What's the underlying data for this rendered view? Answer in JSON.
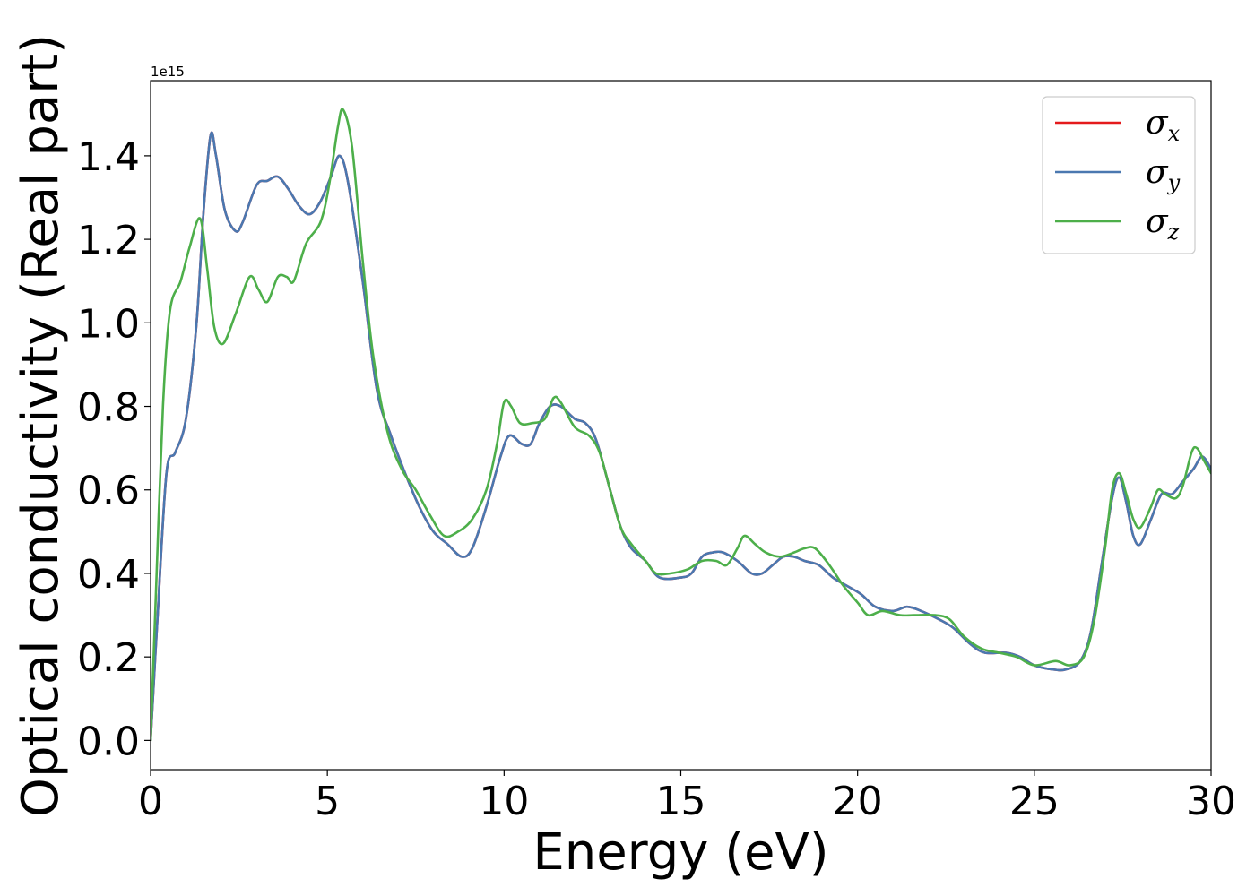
{
  "chart_data": {
    "type": "line",
    "xlabel": "Energy (eV)",
    "ylabel": "Optical conductivity (Real part)",
    "y_offset_label": "1e15",
    "xlim": [
      0,
      30
    ],
    "ylim": [
      -0.07,
      1.58
    ],
    "x_ticks": [
      0,
      5,
      10,
      15,
      20,
      25,
      30
    ],
    "y_ticks": [
      0.0,
      0.2,
      0.4,
      0.6,
      0.8,
      1.0,
      1.2,
      1.4
    ],
    "x_tick_labels": [
      "0",
      "5",
      "10",
      "15",
      "20",
      "25",
      "30"
    ],
    "y_tick_labels": [
      "0.0",
      "0.2",
      "0.4",
      "0.6",
      "0.8",
      "1.0",
      "1.2",
      "1.4"
    ],
    "legend_position": "top-right",
    "grid": false,
    "series": [
      {
        "name": "σx",
        "legend_symbol": "σ",
        "legend_subscript": "x",
        "color": "#e41a1c",
        "points": [
          [
            0,
            0
          ],
          [
            0.2,
            0.3
          ],
          [
            0.45,
            0.64
          ],
          [
            0.7,
            0.69
          ],
          [
            1.0,
            0.77
          ],
          [
            1.3,
            1.0
          ],
          [
            1.5,
            1.27
          ],
          [
            1.7,
            1.45
          ],
          [
            1.85,
            1.4
          ],
          [
            2.1,
            1.27
          ],
          [
            2.4,
            1.22
          ],
          [
            2.6,
            1.24
          ],
          [
            3.0,
            1.33
          ],
          [
            3.3,
            1.34
          ],
          [
            3.6,
            1.35
          ],
          [
            3.9,
            1.32
          ],
          [
            4.2,
            1.28
          ],
          [
            4.5,
            1.26
          ],
          [
            4.8,
            1.29
          ],
          [
            5.1,
            1.35
          ],
          [
            5.35,
            1.4
          ],
          [
            5.6,
            1.33
          ],
          [
            6.0,
            1.1
          ],
          [
            6.4,
            0.84
          ],
          [
            6.8,
            0.73
          ],
          [
            7.2,
            0.64
          ],
          [
            7.6,
            0.56
          ],
          [
            8.0,
            0.5
          ],
          [
            8.4,
            0.47
          ],
          [
            8.8,
            0.44
          ],
          [
            9.1,
            0.46
          ],
          [
            9.5,
            0.56
          ],
          [
            9.9,
            0.68
          ],
          [
            10.15,
            0.73
          ],
          [
            10.5,
            0.71
          ],
          [
            10.75,
            0.71
          ],
          [
            11.0,
            0.76
          ],
          [
            11.3,
            0.8
          ],
          [
            11.6,
            0.8
          ],
          [
            12.0,
            0.77
          ],
          [
            12.3,
            0.76
          ],
          [
            12.6,
            0.72
          ],
          [
            13.0,
            0.6
          ],
          [
            13.3,
            0.51
          ],
          [
            13.6,
            0.46
          ],
          [
            14.0,
            0.43
          ],
          [
            14.4,
            0.39
          ],
          [
            15.0,
            0.39
          ],
          [
            15.3,
            0.4
          ],
          [
            15.6,
            0.44
          ],
          [
            15.9,
            0.45
          ],
          [
            16.2,
            0.45
          ],
          [
            16.6,
            0.43
          ],
          [
            17.0,
            0.4
          ],
          [
            17.3,
            0.4
          ],
          [
            17.6,
            0.42
          ],
          [
            17.9,
            0.44
          ],
          [
            18.2,
            0.44
          ],
          [
            18.5,
            0.43
          ],
          [
            18.9,
            0.42
          ],
          [
            19.3,
            0.39
          ],
          [
            19.7,
            0.37
          ],
          [
            20.1,
            0.35
          ],
          [
            20.5,
            0.32
          ],
          [
            21.0,
            0.31
          ],
          [
            21.4,
            0.32
          ],
          [
            21.8,
            0.31
          ],
          [
            22.3,
            0.29
          ],
          [
            22.7,
            0.27
          ],
          [
            23.2,
            0.23
          ],
          [
            23.6,
            0.21
          ],
          [
            24.2,
            0.21
          ],
          [
            24.6,
            0.2
          ],
          [
            25.0,
            0.18
          ],
          [
            25.5,
            0.17
          ],
          [
            25.9,
            0.17
          ],
          [
            26.3,
            0.19
          ],
          [
            26.6,
            0.26
          ],
          [
            26.9,
            0.42
          ],
          [
            27.2,
            0.58
          ],
          [
            27.4,
            0.63
          ],
          [
            27.6,
            0.57
          ],
          [
            27.8,
            0.49
          ],
          [
            28.0,
            0.47
          ],
          [
            28.3,
            0.53
          ],
          [
            28.6,
            0.59
          ],
          [
            28.9,
            0.59
          ],
          [
            29.2,
            0.62
          ],
          [
            29.5,
            0.65
          ],
          [
            29.75,
            0.68
          ],
          [
            30.0,
            0.65
          ]
        ]
      },
      {
        "name": "σy",
        "legend_symbol": "σ",
        "legend_subscript": "y",
        "color": "#4a78b0",
        "points": [
          [
            0,
            0
          ],
          [
            0.2,
            0.3
          ],
          [
            0.45,
            0.64
          ],
          [
            0.7,
            0.69
          ],
          [
            1.0,
            0.77
          ],
          [
            1.3,
            1.0
          ],
          [
            1.5,
            1.27
          ],
          [
            1.7,
            1.45
          ],
          [
            1.85,
            1.4
          ],
          [
            2.1,
            1.27
          ],
          [
            2.4,
            1.22
          ],
          [
            2.6,
            1.24
          ],
          [
            3.0,
            1.33
          ],
          [
            3.3,
            1.34
          ],
          [
            3.6,
            1.35
          ],
          [
            3.9,
            1.32
          ],
          [
            4.2,
            1.28
          ],
          [
            4.5,
            1.26
          ],
          [
            4.8,
            1.29
          ],
          [
            5.1,
            1.35
          ],
          [
            5.35,
            1.4
          ],
          [
            5.6,
            1.33
          ],
          [
            6.0,
            1.1
          ],
          [
            6.4,
            0.84
          ],
          [
            6.8,
            0.73
          ],
          [
            7.2,
            0.64
          ],
          [
            7.6,
            0.56
          ],
          [
            8.0,
            0.5
          ],
          [
            8.4,
            0.47
          ],
          [
            8.8,
            0.44
          ],
          [
            9.1,
            0.46
          ],
          [
            9.5,
            0.56
          ],
          [
            9.9,
            0.68
          ],
          [
            10.15,
            0.73
          ],
          [
            10.5,
            0.71
          ],
          [
            10.75,
            0.71
          ],
          [
            11.0,
            0.76
          ],
          [
            11.3,
            0.8
          ],
          [
            11.6,
            0.8
          ],
          [
            12.0,
            0.77
          ],
          [
            12.3,
            0.76
          ],
          [
            12.6,
            0.72
          ],
          [
            13.0,
            0.6
          ],
          [
            13.3,
            0.51
          ],
          [
            13.6,
            0.46
          ],
          [
            14.0,
            0.43
          ],
          [
            14.4,
            0.39
          ],
          [
            15.0,
            0.39
          ],
          [
            15.3,
            0.4
          ],
          [
            15.6,
            0.44
          ],
          [
            15.9,
            0.45
          ],
          [
            16.2,
            0.45
          ],
          [
            16.6,
            0.43
          ],
          [
            17.0,
            0.4
          ],
          [
            17.3,
            0.4
          ],
          [
            17.6,
            0.42
          ],
          [
            17.9,
            0.44
          ],
          [
            18.2,
            0.44
          ],
          [
            18.5,
            0.43
          ],
          [
            18.9,
            0.42
          ],
          [
            19.3,
            0.39
          ],
          [
            19.7,
            0.37
          ],
          [
            20.1,
            0.35
          ],
          [
            20.5,
            0.32
          ],
          [
            21.0,
            0.31
          ],
          [
            21.4,
            0.32
          ],
          [
            21.8,
            0.31
          ],
          [
            22.3,
            0.29
          ],
          [
            22.7,
            0.27
          ],
          [
            23.2,
            0.23
          ],
          [
            23.6,
            0.21
          ],
          [
            24.2,
            0.21
          ],
          [
            24.6,
            0.2
          ],
          [
            25.0,
            0.18
          ],
          [
            25.5,
            0.17
          ],
          [
            25.9,
            0.17
          ],
          [
            26.3,
            0.19
          ],
          [
            26.6,
            0.26
          ],
          [
            26.9,
            0.42
          ],
          [
            27.2,
            0.58
          ],
          [
            27.4,
            0.63
          ],
          [
            27.6,
            0.57
          ],
          [
            27.8,
            0.49
          ],
          [
            28.0,
            0.47
          ],
          [
            28.3,
            0.53
          ],
          [
            28.6,
            0.59
          ],
          [
            28.9,
            0.59
          ],
          [
            29.2,
            0.62
          ],
          [
            29.5,
            0.65
          ],
          [
            29.75,
            0.68
          ],
          [
            30.0,
            0.65
          ]
        ]
      },
      {
        "name": "σz",
        "legend_symbol": "σ",
        "legend_subscript": "z",
        "color": "#4daf4a",
        "points": [
          [
            0,
            0
          ],
          [
            0.15,
            0.35
          ],
          [
            0.35,
            0.8
          ],
          [
            0.55,
            1.03
          ],
          [
            0.85,
            1.1
          ],
          [
            1.1,
            1.18
          ],
          [
            1.4,
            1.25
          ],
          [
            1.6,
            1.13
          ],
          [
            1.8,
            0.99
          ],
          [
            2.05,
            0.95
          ],
          [
            2.4,
            1.02
          ],
          [
            2.8,
            1.11
          ],
          [
            3.05,
            1.08
          ],
          [
            3.3,
            1.05
          ],
          [
            3.6,
            1.11
          ],
          [
            3.85,
            1.11
          ],
          [
            4.05,
            1.1
          ],
          [
            4.4,
            1.19
          ],
          [
            4.8,
            1.24
          ],
          [
            5.05,
            1.33
          ],
          [
            5.3,
            1.47
          ],
          [
            5.45,
            1.51
          ],
          [
            5.7,
            1.42
          ],
          [
            6.0,
            1.15
          ],
          [
            6.3,
            0.92
          ],
          [
            6.7,
            0.74
          ],
          [
            7.1,
            0.65
          ],
          [
            7.5,
            0.6
          ],
          [
            7.9,
            0.54
          ],
          [
            8.3,
            0.49
          ],
          [
            8.7,
            0.5
          ],
          [
            9.1,
            0.53
          ],
          [
            9.5,
            0.6
          ],
          [
            9.8,
            0.71
          ],
          [
            10.0,
            0.81
          ],
          [
            10.2,
            0.8
          ],
          [
            10.45,
            0.76
          ],
          [
            10.8,
            0.76
          ],
          [
            11.15,
            0.77
          ],
          [
            11.4,
            0.82
          ],
          [
            11.6,
            0.81
          ],
          [
            12.0,
            0.75
          ],
          [
            12.4,
            0.73
          ],
          [
            12.7,
            0.69
          ],
          [
            13.0,
            0.6
          ],
          [
            13.3,
            0.51
          ],
          [
            13.6,
            0.47
          ],
          [
            14.0,
            0.43
          ],
          [
            14.3,
            0.4
          ],
          [
            14.7,
            0.4
          ],
          [
            15.2,
            0.41
          ],
          [
            15.6,
            0.43
          ],
          [
            16.0,
            0.43
          ],
          [
            16.3,
            0.42
          ],
          [
            16.6,
            0.46
          ],
          [
            16.8,
            0.49
          ],
          [
            17.1,
            0.47
          ],
          [
            17.4,
            0.45
          ],
          [
            17.8,
            0.44
          ],
          [
            18.2,
            0.45
          ],
          [
            18.5,
            0.46
          ],
          [
            18.8,
            0.46
          ],
          [
            19.2,
            0.42
          ],
          [
            19.6,
            0.37
          ],
          [
            20.0,
            0.33
          ],
          [
            20.3,
            0.3
          ],
          [
            20.7,
            0.31
          ],
          [
            21.2,
            0.3
          ],
          [
            21.6,
            0.3
          ],
          [
            22.2,
            0.3
          ],
          [
            22.6,
            0.29
          ],
          [
            23.0,
            0.25
          ],
          [
            23.5,
            0.22
          ],
          [
            24.0,
            0.21
          ],
          [
            24.5,
            0.2
          ],
          [
            25.0,
            0.18
          ],
          [
            25.6,
            0.19
          ],
          [
            26.0,
            0.18
          ],
          [
            26.4,
            0.2
          ],
          [
            26.7,
            0.29
          ],
          [
            27.0,
            0.46
          ],
          [
            27.2,
            0.6
          ],
          [
            27.4,
            0.64
          ],
          [
            27.6,
            0.59
          ],
          [
            27.8,
            0.53
          ],
          [
            28.0,
            0.51
          ],
          [
            28.3,
            0.56
          ],
          [
            28.5,
            0.6
          ],
          [
            28.7,
            0.59
          ],
          [
            29.0,
            0.58
          ],
          [
            29.2,
            0.61
          ],
          [
            29.45,
            0.69
          ],
          [
            29.6,
            0.7
          ],
          [
            29.8,
            0.67
          ],
          [
            30.0,
            0.64
          ]
        ]
      }
    ]
  }
}
